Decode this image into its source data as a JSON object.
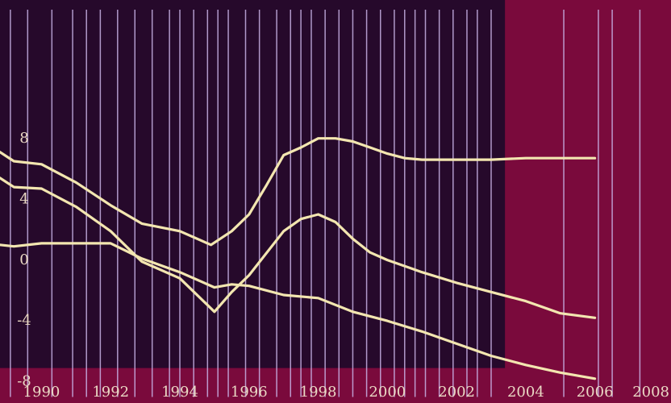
{
  "colors": {
    "background": "#7a0a3c",
    "panel": "#26092b",
    "gridline": "#c9b3e6",
    "line": "#f3e6b0",
    "tick_text": "#ead8c4"
  },
  "chart_data": {
    "type": "line",
    "title": "",
    "xlabel": "",
    "ylabel": "",
    "xlim": [
      1988.8,
      2008.2
    ],
    "ylim": [
      -9.5,
      17
    ],
    "x_ticks": [
      1990,
      1992,
      1994,
      1996,
      1998,
      2000,
      2002,
      2004,
      2006,
      2008
    ],
    "x_tick_labels": [
      "1990",
      "1992",
      "1994",
      "1996",
      "1998",
      "2000",
      "2002",
      "2004",
      "2006",
      "2008"
    ],
    "y_ticks": [
      8,
      4,
      0,
      -4,
      -8
    ],
    "y_tick_labels": [
      "8",
      "4",
      "0",
      "-4",
      "-8"
    ],
    "shaded_region": {
      "from": 1988.8,
      "to": 2003.4,
      "y_from": -7.2,
      "y_to": 17
    },
    "vertical_lines_x": [
      1989.1,
      1989.6,
      1990.3,
      1990.9,
      1991.3,
      1991.7,
      1992.2,
      1992.7,
      1993.2,
      1993.7,
      1994.0,
      1994.4,
      1994.8,
      1995.1,
      1995.4,
      1995.9,
      1996.3,
      1996.8,
      1997.2,
      1997.5,
      1997.8,
      1998.2,
      1998.6,
      1999.0,
      1999.4,
      1999.8,
      2000.2,
      2000.5,
      2000.8,
      2001.1,
      2001.5,
      2001.9,
      2002.3,
      2002.6,
      2003.0,
      2005.1,
      2006.1,
      2006.5,
      2007.3
    ],
    "series": [
      {
        "x": [
          1988.8,
          1989.2,
          1990.0,
          1991.0,
          1992.0,
          1992.9,
          1994.0,
          1994.9,
          1995.5,
          1996.0,
          1996.5,
          1997.0,
          1997.5,
          1998.0,
          1998.5,
          1999.0,
          1999.5,
          2000.0,
          2000.5,
          2001.0,
          2002.0,
          2003.0,
          2004.0,
          2005.0,
          2006.0
        ],
        "values": [
          7.0,
          6.4,
          6.2,
          5.0,
          3.5,
          2.3,
          1.8,
          0.9,
          1.8,
          2.9,
          4.8,
          6.8,
          7.3,
          7.9,
          7.9,
          7.7,
          7.3,
          6.9,
          6.6,
          6.5,
          6.5,
          6.5,
          6.6,
          6.6,
          6.6
        ]
      },
      {
        "x": [
          1988.8,
          1989.2,
          1990.0,
          1991.0,
          1992.0,
          1992.9,
          1994.0,
          1995.0,
          1995.5,
          1996.0,
          1997.0,
          1997.5,
          1998.0,
          1998.5,
          1999.0,
          1999.5,
          2000.0,
          2001.0,
          2002.0,
          2003.0,
          2004.0,
          2005.0,
          2006.0
        ],
        "values": [
          5.3,
          4.7,
          4.6,
          3.4,
          1.8,
          -0.2,
          -1.3,
          -3.5,
          -2.2,
          -1.1,
          1.8,
          2.6,
          2.9,
          2.4,
          1.3,
          0.4,
          -0.1,
          -0.9,
          -1.6,
          -2.2,
          -2.8,
          -3.6,
          -3.9
        ]
      },
      {
        "x": [
          1988.8,
          1989.2,
          1990.0,
          1991.0,
          1992.0,
          1992.9,
          1994.0,
          1995.0,
          1995.5,
          1996.0,
          1997.0,
          1998.0,
          1999.0,
          2000.0,
          2001.0,
          2002.0,
          2003.0,
          2004.0,
          2005.0,
          2006.0
        ],
        "values": [
          0.9,
          0.8,
          1.0,
          1.0,
          1.0,
          0.0,
          -0.9,
          -1.9,
          -1.7,
          -1.8,
          -2.4,
          -2.6,
          -3.5,
          -4.1,
          -4.8,
          -5.6,
          -6.4,
          -7.0,
          -7.5,
          -7.9
        ]
      }
    ]
  }
}
